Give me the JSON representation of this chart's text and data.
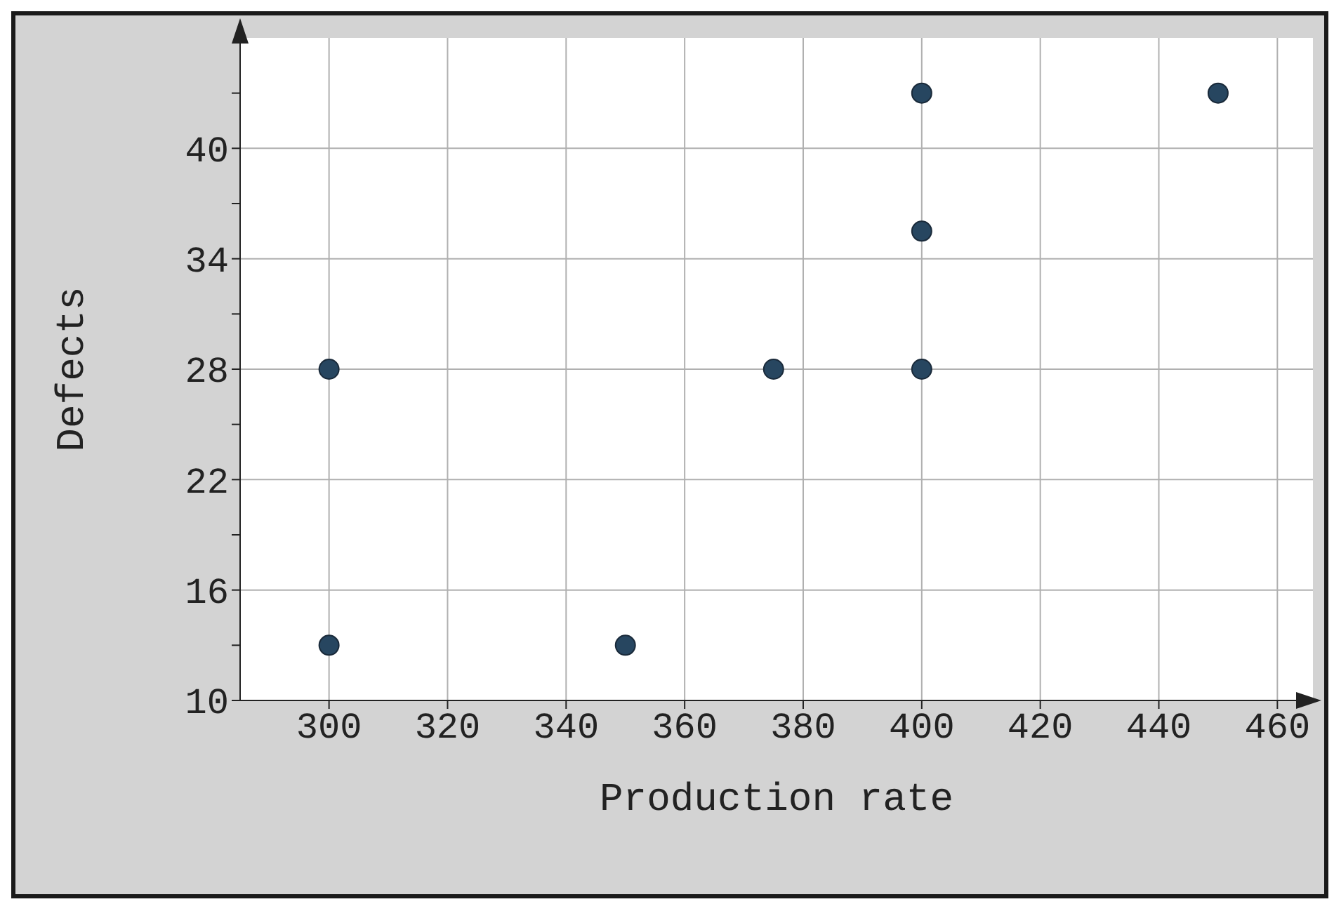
{
  "chart_data": {
    "type": "scatter",
    "xlabel": "Production rate",
    "ylabel": "Defects",
    "x": [
      300,
      300,
      350,
      375,
      400,
      400,
      400,
      450
    ],
    "values": [
      28,
      13,
      13,
      28,
      28,
      35.5,
      43,
      43
    ],
    "color": "#274660",
    "marker": "circle",
    "xlim": [
      285,
      466
    ],
    "xticks": [
      300,
      320,
      340,
      360,
      380,
      400,
      420,
      440,
      460
    ],
    "ylim": [
      10,
      46
    ],
    "yticks": [
      10,
      {
        "value": 13,
        "label": null
      },
      16,
      {
        "value": 19,
        "label": null
      },
      22,
      {
        "value": 25,
        "label": null
      },
      28,
      {
        "value": 31,
        "label": null
      },
      34,
      {
        "value": 37,
        "label": null
      },
      40,
      {
        "value": 43,
        "label": null
      }
    ],
    "grid": true,
    "legend": false
  }
}
